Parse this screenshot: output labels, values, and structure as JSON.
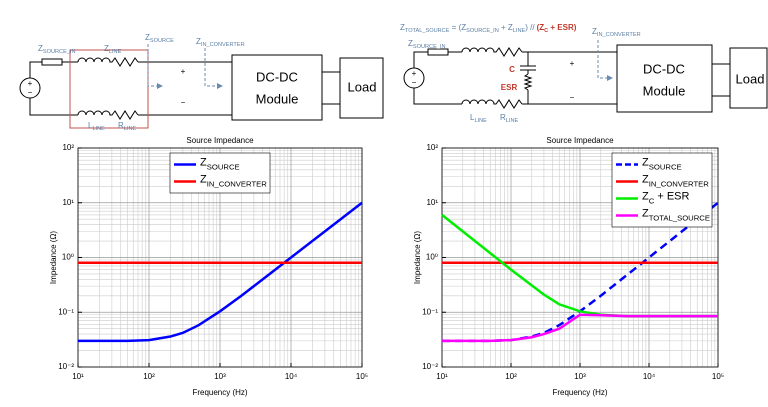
{
  "left_circuit": {
    "labels": [
      "Z_{SOURCE_IN}",
      "Z_{LINE}",
      "Z_{SOURCE}",
      "Z_{IN_CONVERTER}",
      "+",
      "−",
      "DC-DC",
      "Module",
      "Load",
      "L_{LINE}",
      "R_{LINE}",
      "+",
      "−"
    ]
  },
  "right_circuit": {
    "labels": [
      "Z_{TOTAL_SOURCE} = (Z_{SOURCE_IN} + Z_{LINE}) // ",
      "(Z_{C} + ESR)",
      "Z_{IN_CONVERTER}",
      "+",
      "−",
      "DC-DC",
      "Module",
      "Load",
      "L_{LINE}",
      "R_{LINE}",
      "C",
      "ESR",
      "+",
      "−",
      "Z_{SOURCE_IN}"
    ]
  },
  "chart_data": [
    {
      "type": "line",
      "title": "Source Impedance",
      "x_label": "Frequency (Hz)",
      "y_label": "Impedance (Ω)",
      "xscale": "log",
      "yscale": "log",
      "grid": true,
      "legend": "upper center",
      "xlim": [
        10,
        100000
      ],
      "ylim": [
        0.01,
        100
      ],
      "xticks": [
        {
          "value": 10,
          "label": "10¹"
        },
        {
          "value": 100,
          "label": "10²"
        },
        {
          "value": 1000,
          "label": "10³"
        },
        {
          "value": 10000,
          "label": "10⁴"
        },
        {
          "value": 100000,
          "label": "10⁵"
        }
      ],
      "yticks": [
        {
          "value": 0.01,
          "label": "10⁻²"
        },
        {
          "value": 0.1,
          "label": "10⁻¹"
        },
        {
          "value": 1,
          "label": "10⁰"
        },
        {
          "value": 10,
          "label": "10¹"
        },
        {
          "value": 100,
          "label": "10²"
        }
      ],
      "x": [
        10,
        20,
        50,
        100,
        200,
        300,
        500,
        1000,
        2000,
        5000,
        10000,
        20000,
        50000,
        100000
      ],
      "series": [
        {
          "name": "Z_{SOURCE}",
          "color": "#0000ff",
          "linestyle": "solid",
          "values": [
            0.03,
            0.03,
            0.03,
            0.031,
            0.036,
            0.042,
            0.058,
            0.104,
            0.2,
            0.5,
            1.0,
            2.0,
            5.0,
            10.0
          ]
        },
        {
          "name": "Z_{IN_CONVERTER}",
          "color": "#ff0000",
          "linestyle": "solid",
          "values": [
            0.8,
            0.8,
            0.8,
            0.8,
            0.8,
            0.8,
            0.8,
            0.8,
            0.8,
            0.8,
            0.8,
            0.8,
            0.8,
            0.8
          ]
        }
      ]
    },
    {
      "type": "line",
      "title": "Source Impedance",
      "x_label": "Frequency (Hz)",
      "y_label": "Impedance (Ω)",
      "xscale": "log",
      "yscale": "log",
      "grid": true,
      "legend": "upper right",
      "xlim": [
        10,
        100000
      ],
      "ylim": [
        0.01,
        100
      ],
      "xticks": [
        {
          "value": 10,
          "label": "10¹"
        },
        {
          "value": 100,
          "label": "10²"
        },
        {
          "value": 1000,
          "label": "10³"
        },
        {
          "value": 10000,
          "label": "10⁴"
        },
        {
          "value": 100000,
          "label": "10⁵"
        }
      ],
      "yticks": [
        {
          "value": 0.01,
          "label": "10⁻²"
        },
        {
          "value": 0.1,
          "label": "10⁻¹"
        },
        {
          "value": 1,
          "label": "10⁰"
        },
        {
          "value": 10,
          "label": "10¹"
        },
        {
          "value": 100,
          "label": "10²"
        }
      ],
      "x": [
        10,
        20,
        50,
        100,
        200,
        300,
        500,
        1000,
        2000,
        5000,
        10000,
        20000,
        50000,
        100000
      ],
      "series": [
        {
          "name": "Z_{SOURCE}",
          "color": "#0000ff",
          "linestyle": "dashed",
          "values": [
            0.03,
            0.03,
            0.03,
            0.031,
            0.036,
            0.042,
            0.058,
            0.104,
            0.2,
            0.5,
            1.0,
            2.0,
            5.0,
            10.0
          ]
        },
        {
          "name": "Z_{IN_CONVERTER}",
          "color": "#ff0000",
          "linestyle": "solid",
          "values": [
            0.8,
            0.8,
            0.8,
            0.8,
            0.8,
            0.8,
            0.8,
            0.8,
            0.8,
            0.8,
            0.8,
            0.8,
            0.8,
            0.8
          ]
        },
        {
          "name": "Z_{C} + ESR",
          "color": "#00ee00",
          "linestyle": "solid",
          "values": [
            6.0,
            3.0,
            1.2,
            0.6,
            0.31,
            0.21,
            0.14,
            0.104,
            0.09,
            0.085,
            0.085,
            0.085,
            0.085,
            0.085
          ]
        },
        {
          "name": "Z_{TOTAL_SOURCE}",
          "color": "#ff00ff",
          "linestyle": "solid",
          "values": [
            0.03,
            0.03,
            0.03,
            0.031,
            0.035,
            0.04,
            0.05,
            0.09,
            0.088,
            0.085,
            0.085,
            0.085,
            0.085,
            0.085
          ]
        }
      ]
    }
  ]
}
